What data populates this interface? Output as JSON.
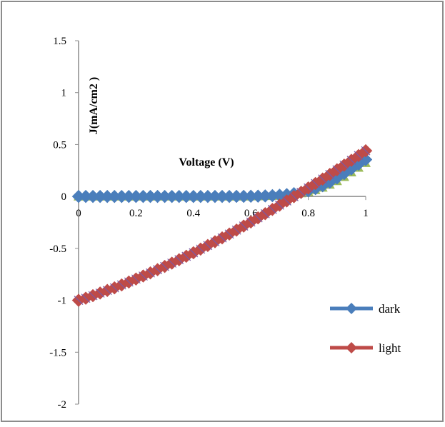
{
  "chart_data": {
    "type": "line",
    "xlabel": "Voltage (V)",
    "ylabel": "J(mA/cm2 )",
    "xlim": [
      0,
      1
    ],
    "ylim": [
      -2,
      1.5
    ],
    "x_ticks": [
      "0",
      "0.2",
      "0.4",
      "0.6",
      "0.8",
      "1"
    ],
    "y_ticks": [
      "1.5",
      "1",
      "0.5",
      "0",
      "-0.5",
      "-1",
      "-1.5",
      "-2"
    ],
    "grid": false,
    "legend_position": "right",
    "x": [
      0,
      0.025,
      0.05,
      0.075,
      0.1,
      0.125,
      0.15,
      0.175,
      0.2,
      0.225,
      0.25,
      0.275,
      0.3,
      0.325,
      0.35,
      0.375,
      0.4,
      0.425,
      0.45,
      0.475,
      0.5,
      0.525,
      0.55,
      0.575,
      0.6,
      0.625,
      0.65,
      0.675,
      0.7,
      0.725,
      0.75,
      0.775,
      0.8,
      0.825,
      0.85,
      0.875,
      0.9,
      0.925,
      0.95,
      0.975,
      1.0
    ],
    "series": [
      {
        "name": "dark",
        "color": "#4a7ebb",
        "marker": "diamond",
        "values": [
          0,
          0,
          0,
          0,
          0,
          0,
          0,
          0,
          0,
          0,
          0,
          0,
          0,
          0,
          0,
          0,
          0,
          0,
          0,
          0,
          0,
          0,
          0.001,
          0.001,
          0.002,
          0.003,
          0.005,
          0.008,
          0.012,
          0.018,
          0.027,
          0.039,
          0.055,
          0.076,
          0.103,
          0.137,
          0.178,
          0.221,
          0.265,
          0.31,
          0.355
        ]
      },
      {
        "name": "light",
        "color": "#be4b48",
        "marker": "diamond",
        "values": [
          -1.0,
          -0.98,
          -0.955,
          -0.93,
          -0.905,
          -0.88,
          -0.852,
          -0.824,
          -0.795,
          -0.766,
          -0.736,
          -0.705,
          -0.674,
          -0.642,
          -0.609,
          -0.576,
          -0.542,
          -0.507,
          -0.472,
          -0.436,
          -0.399,
          -0.362,
          -0.324,
          -0.285,
          -0.246,
          -0.206,
          -0.166,
          -0.125,
          -0.084,
          -0.043,
          -0.002,
          0.04,
          0.082,
          0.125,
          0.168,
          0.212,
          0.257,
          0.302,
          0.348,
          0.394,
          0.44
        ],
        "values_overridden": false
      },
      {
        "color": "#9bbb59",
        "marker": "triangle",
        "values": [
          0,
          0,
          0,
          0,
          0,
          0,
          0,
          0,
          0,
          0,
          0,
          0,
          0,
          0,
          0,
          0,
          0,
          0,
          0,
          0,
          0,
          0,
          0,
          0,
          0.001,
          0.002,
          0.004,
          0.006,
          0.009,
          0.014,
          0.021,
          0.031,
          0.044,
          0.062,
          0.085,
          0.113,
          0.148,
          0.188,
          0.232,
          0.277,
          0.322
        ]
      }
    ],
    "legend": [
      {
        "label": "dark",
        "color": "#4a7ebb"
      },
      {
        "label": "light",
        "color": "#be4b48"
      }
    ]
  }
}
